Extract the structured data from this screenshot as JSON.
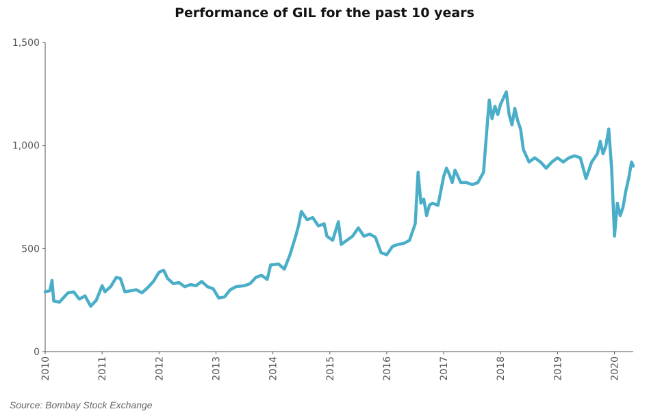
{
  "chart_data": {
    "type": "line",
    "title": "Performance of GIL for the past 10 years",
    "xlabel": "",
    "ylabel": "",
    "ylim": [
      0,
      1500
    ],
    "y_ticks": [
      "0",
      "500",
      "1,000",
      "1,500"
    ],
    "x_range": [
      2010.0,
      2020.33
    ],
    "x_ticks": [
      "2010",
      "2011",
      "2012",
      "2013",
      "2014",
      "2015",
      "2016",
      "2017",
      "2018",
      "2019",
      "2020"
    ],
    "grid": false,
    "legend": "none",
    "series": [
      {
        "color": "#4aaec8",
        "x": [
          2010.0,
          2010.08,
          2010.12,
          2010.15,
          2010.25,
          2010.4,
          2010.5,
          2010.6,
          2010.7,
          2010.8,
          2010.9,
          2011.0,
          2011.05,
          2011.15,
          2011.25,
          2011.32,
          2011.4,
          2011.5,
          2011.6,
          2011.7,
          2011.8,
          2011.9,
          2012.0,
          2012.08,
          2012.15,
          2012.25,
          2012.35,
          2012.45,
          2012.55,
          2012.65,
          2012.75,
          2012.85,
          2012.95,
          2013.05,
          2013.15,
          2013.25,
          2013.35,
          2013.5,
          2013.6,
          2013.7,
          2013.8,
          2013.9,
          2013.96,
          2014.1,
          2014.2,
          2014.3,
          2014.4,
          2014.45,
          2014.5,
          2014.6,
          2014.7,
          2014.8,
          2014.9,
          2014.95,
          2015.05,
          2015.15,
          2015.2,
          2015.3,
          2015.4,
          2015.5,
          2015.6,
          2015.7,
          2015.8,
          2015.9,
          2016.0,
          2016.1,
          2016.2,
          2016.3,
          2016.4,
          2016.5,
          2016.55,
          2016.6,
          2016.65,
          2016.7,
          2016.75,
          2016.8,
          2016.9,
          2017.0,
          2017.05,
          2017.1,
          2017.15,
          2017.2,
          2017.25,
          2017.3,
          2017.4,
          2017.5,
          2017.6,
          2017.7,
          2017.75,
          2017.8,
          2017.85,
          2017.9,
          2017.95,
          2018.0,
          2018.05,
          2018.1,
          2018.15,
          2018.2,
          2018.25,
          2018.3,
          2018.35,
          2018.4,
          2018.5,
          2018.6,
          2018.7,
          2018.8,
          2018.9,
          2019.0,
          2019.1,
          2019.2,
          2019.3,
          2019.4,
          2019.5,
          2019.6,
          2019.7,
          2019.75,
          2019.8,
          2019.85,
          2019.9,
          2019.95,
          2020.0,
          2020.05,
          2020.1,
          2020.15,
          2020.2,
          2020.25,
          2020.3,
          2020.33
        ],
        "y": [
          290,
          295,
          345,
          245,
          240,
          285,
          290,
          255,
          270,
          220,
          250,
          320,
          290,
          315,
          360,
          355,
          290,
          295,
          300,
          285,
          310,
          340,
          385,
          395,
          355,
          330,
          335,
          315,
          325,
          320,
          340,
          315,
          305,
          260,
          265,
          300,
          315,
          320,
          330,
          360,
          370,
          350,
          420,
          425,
          400,
          470,
          560,
          610,
          680,
          640,
          650,
          610,
          620,
          560,
          540,
          630,
          520,
          540,
          560,
          600,
          560,
          570,
          555,
          480,
          470,
          510,
          520,
          525,
          540,
          620,
          870,
          720,
          740,
          660,
          710,
          720,
          710,
          850,
          890,
          860,
          820,
          880,
          850,
          820,
          820,
          810,
          820,
          870,
          1050,
          1220,
          1130,
          1190,
          1150,
          1200,
          1230,
          1260,
          1150,
          1100,
          1180,
          1120,
          1080,
          980,
          920,
          940,
          920,
          890,
          920,
          940,
          920,
          940,
          950,
          940,
          840,
          920,
          960,
          1020,
          960,
          1000,
          1080,
          890,
          560,
          720,
          660,
          700,
          780,
          840,
          920,
          900
        ]
      }
    ]
  },
  "source": "Source: Bombay Stock Exchange"
}
